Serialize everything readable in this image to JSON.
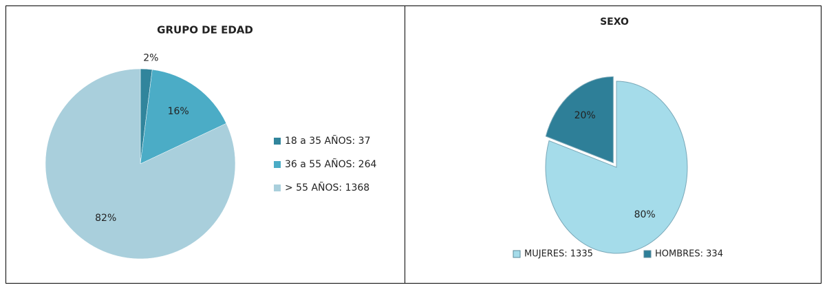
{
  "chart_data": [
    {
      "type": "pie",
      "title": "GRUPO DE EDAD",
      "categories": [
        "18 a 35 AÑOS: 37",
        "36 a 55 AÑOS: 264",
        "> 55 AÑOS: 1368"
      ],
      "values": [
        2,
        16,
        82
      ],
      "value_labels": [
        "2%",
        "16%",
        "82%"
      ],
      "colors": [
        "#31859c",
        "#4bacc6",
        "#a9cfdc"
      ],
      "legend": "right"
    },
    {
      "type": "pie",
      "title": "SEXO",
      "categories": [
        "MUJERES: 1335",
        "HOMBRES: 334"
      ],
      "values": [
        80,
        20
      ],
      "value_labels": [
        "80%",
        "20%"
      ],
      "colors": [
        "#a5dcea",
        "#2e7f98"
      ],
      "legend": "bottom"
    }
  ]
}
